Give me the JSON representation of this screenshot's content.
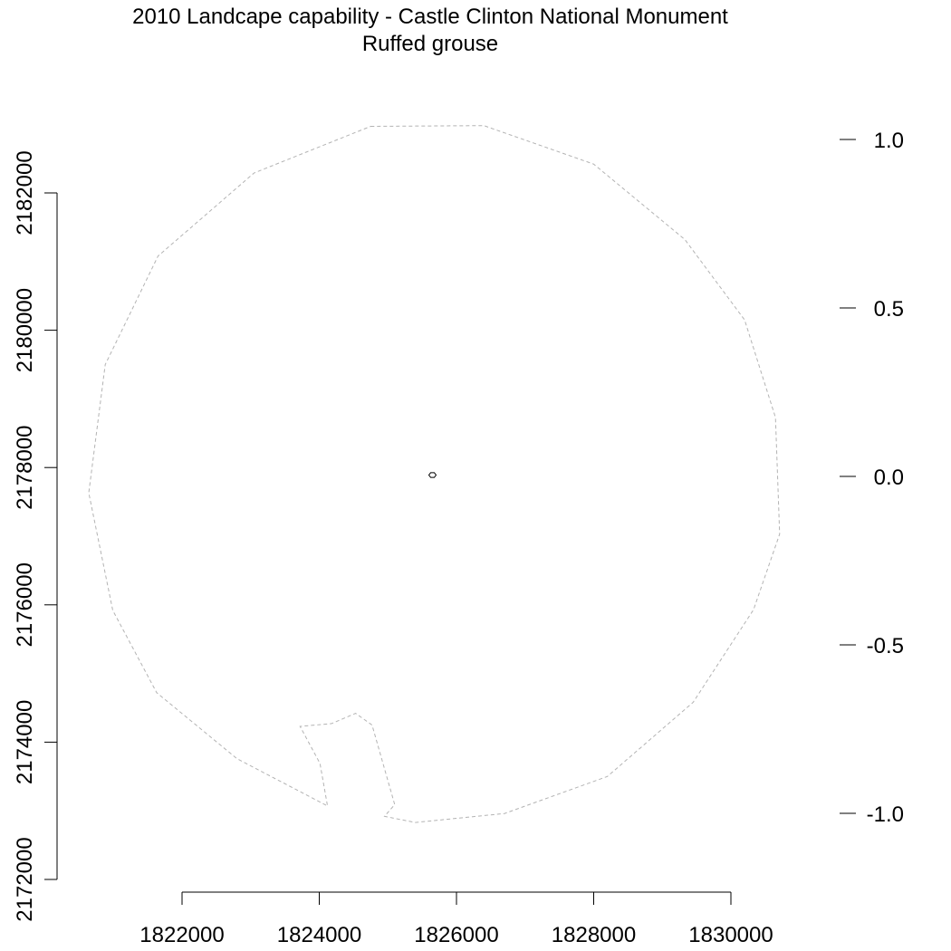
{
  "chart_data": {
    "type": "map",
    "title": "2010 Landcape capability - Castle Clinton National Monument",
    "subtitle": "Ruffed grouse",
    "xlabel": "",
    "ylabel": "",
    "x_axis": {
      "ticks": [
        1822000,
        1824000,
        1826000,
        1828000,
        1830000
      ],
      "tick_labels": [
        "1822000",
        "1824000",
        "1826000",
        "1828000",
        "1830000"
      ]
    },
    "y_axis": {
      "ticks": [
        2172000,
        2174000,
        2176000,
        2178000,
        2180000,
        2182000
      ],
      "tick_labels": [
        "2172000",
        "2174000",
        "2176000",
        "2178000",
        "2180000",
        "2182000"
      ]
    },
    "legend_scale": {
      "ticks": [
        1.0,
        0.5,
        0.0,
        -0.5,
        -1.0
      ],
      "tick_labels": [
        "1.0",
        "0.5",
        "0.0",
        "-0.5",
        "-1.0"
      ]
    },
    "boundary": [
      [
        1824750,
        2182970
      ],
      [
        1826400,
        2182980
      ],
      [
        1828000,
        2182420
      ],
      [
        1829330,
        2181320
      ],
      [
        1830200,
        2180150
      ],
      [
        1830650,
        2178730
      ],
      [
        1830710,
        2177030
      ],
      [
        1830330,
        2175930
      ],
      [
        1829450,
        2174580
      ],
      [
        1828200,
        2173500
      ],
      [
        1826700,
        2172960
      ],
      [
        1825400,
        2172830
      ],
      [
        1824950,
        2172920
      ],
      [
        1825100,
        2173090
      ],
      [
        1824770,
        2174250
      ],
      [
        1824530,
        2174420
      ],
      [
        1824180,
        2174270
      ],
      [
        1823720,
        2174230
      ],
      [
        1824010,
        2173690
      ],
      [
        1824120,
        2173070
      ],
      [
        1822800,
        2173760
      ],
      [
        1821630,
        2174720
      ],
      [
        1820990,
        2175920
      ],
      [
        1820640,
        2177630
      ],
      [
        1820880,
        2179500
      ],
      [
        1821650,
        2181080
      ],
      [
        1823050,
        2182290
      ]
    ],
    "center_point": [
      1825650,
      2177890
    ],
    "grid": false
  }
}
